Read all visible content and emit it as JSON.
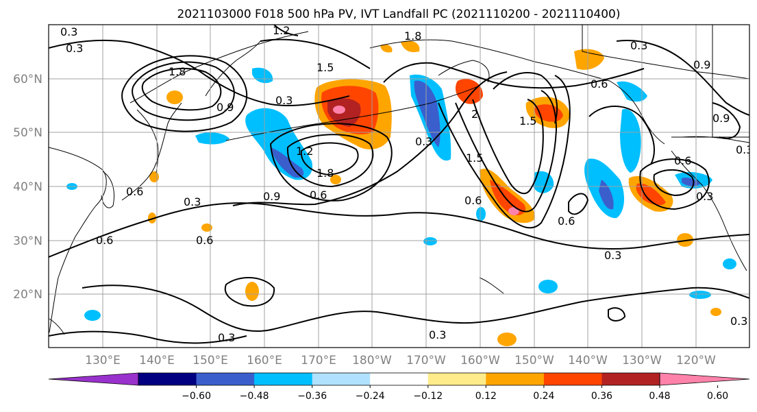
{
  "title": "2021103000 F018 500 hPa PV, IVT Landfall PC (2021110200 - 2021110400)",
  "map": {
    "lon_labels": [
      "130°E",
      "140°E",
      "150°E",
      "160°E",
      "170°E",
      "180°W",
      "170°W",
      "160°W",
      "150°W",
      "140°W",
      "130°W",
      "120°W"
    ],
    "lat_labels": [
      "60°N",
      "50°N",
      "40°N",
      "30°N",
      "20°N"
    ]
  },
  "colorbar": {
    "tick_labels": [
      "−0.60",
      "−0.48",
      "−0.36",
      "−0.24",
      "−0.12",
      "0.12",
      "0.24",
      "0.36",
      "0.48",
      "0.60"
    ],
    "colors": [
      "#9932cc",
      "#000080",
      "#3a5fcd",
      "#00bfff",
      "#b0e2ff",
      "#ffffff",
      "#ffeb8a",
      "#ffa500",
      "#ff4500",
      "#b22222",
      "#ff82ab"
    ]
  },
  "contour_labels": [
    {
      "text": "0.3"
    },
    {
      "text": "0.3"
    },
    {
      "text": "1.2"
    },
    {
      "text": "1.8"
    },
    {
      "text": "1.8"
    },
    {
      "text": "0.9"
    },
    {
      "text": "1.5"
    },
    {
      "text": "0.3"
    },
    {
      "text": "0.6"
    },
    {
      "text": "0.3"
    },
    {
      "text": "0.6"
    },
    {
      "text": "0.6"
    },
    {
      "text": "1.2"
    },
    {
      "text": "1.8"
    },
    {
      "text": "0.9"
    },
    {
      "text": "0.6"
    },
    {
      "text": "0.3"
    },
    {
      "text": "2"
    },
    {
      "text": "1.5"
    },
    {
      "text": "1.5"
    },
    {
      "text": "0.6"
    },
    {
      "text": "0.6"
    },
    {
      "text": "0.3"
    },
    {
      "text": "0.6"
    },
    {
      "text": "0.3"
    },
    {
      "text": "0.9"
    },
    {
      "text": "0.6"
    },
    {
      "text": "0.9"
    },
    {
      "text": "0.3"
    },
    {
      "text": "0.3"
    },
    {
      "text": "0.3"
    },
    {
      "text": "0.3"
    },
    {
      "text": "0.3"
    }
  ]
}
